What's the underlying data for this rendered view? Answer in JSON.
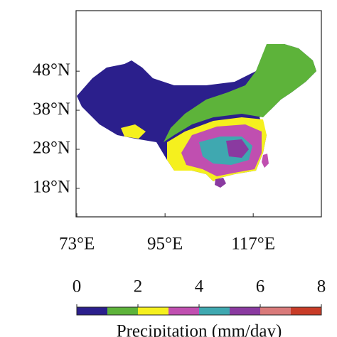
{
  "map": {
    "xlim": [
      72.8,
      134
    ],
    "ylim": [
      10.7,
      63.5
    ],
    "xticks": [
      {
        "value": 73,
        "label": "73°E"
      },
      {
        "value": 95,
        "label": "95°E"
      },
      {
        "value": 117,
        "label": "117°E"
      }
    ],
    "yticks": [
      {
        "value": 48,
        "label": "48°N"
      },
      {
        "value": 38,
        "label": "38°N"
      },
      {
        "value": 28,
        "label": "28°N"
      },
      {
        "value": 18,
        "label": "18°N"
      }
    ]
  },
  "colorbar": {
    "lim": [
      0,
      8
    ],
    "ticks": [
      0,
      2,
      4,
      6,
      8
    ],
    "colors": [
      "#2b1f8c",
      "#5db33a",
      "#f5f01e",
      "#c04fb0",
      "#3fa8b0",
      "#8a3aa0",
      "#d97a7a",
      "#c83c28"
    ],
    "label": "Precipitation (mm/day)"
  }
}
